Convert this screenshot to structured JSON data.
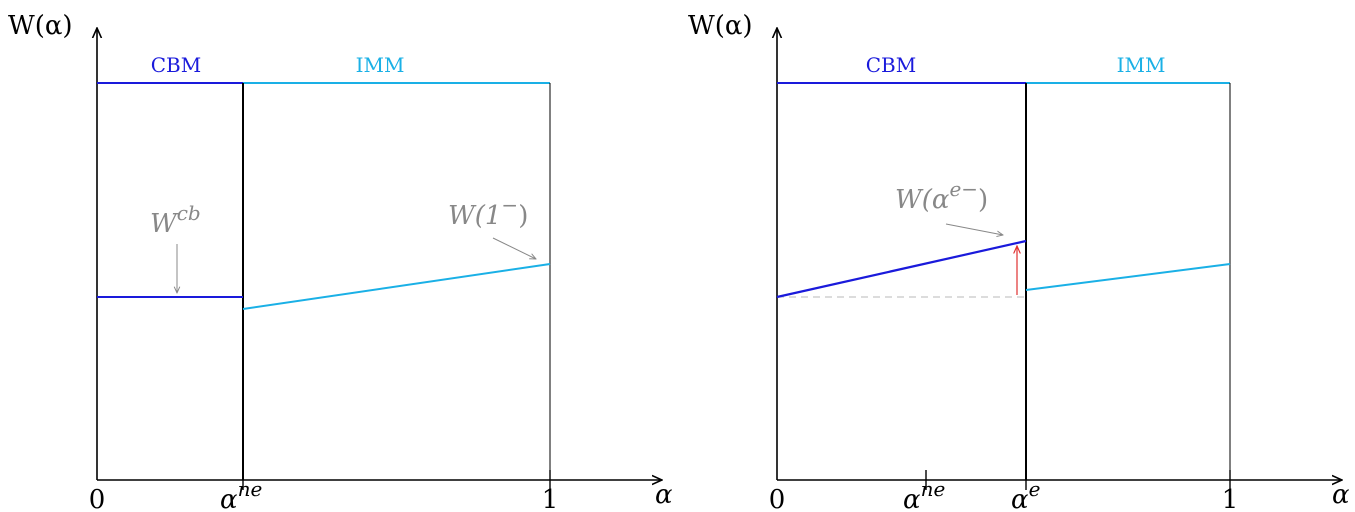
{
  "colors": {
    "axis": "#000000",
    "cbm": "#1a1adb",
    "imm": "#1ab0e6",
    "annotation": "#888888",
    "arrow_red": "#e03030",
    "dashed": "#c8c8c8"
  },
  "left_panel": {
    "y_axis_label": "W(α)",
    "x_axis_label": "α",
    "regime_cbm": "CBM",
    "regime_imm": "IMM",
    "tick_zero": "0",
    "tick_ne_base": "α",
    "tick_ne_sup": "ne",
    "tick_one": "1",
    "ann_wcb_base": "W",
    "ann_wcb_sup": "cb",
    "ann_w1_text": "W(1",
    "ann_w1_sup": "−",
    "ann_w1_close": ")"
  },
  "right_panel": {
    "y_axis_label": "W(α)",
    "x_axis_label": "α",
    "regime_cbm": "CBM",
    "regime_imm": "IMM",
    "tick_zero": "0",
    "tick_ne_base": "α",
    "tick_ne_sup": "ne",
    "tick_e_base": "α",
    "tick_e_sup": "e",
    "tick_one": "1",
    "ann_we_text": "W(α",
    "ann_we_sup": "e−",
    "ann_we_close": ")"
  }
}
